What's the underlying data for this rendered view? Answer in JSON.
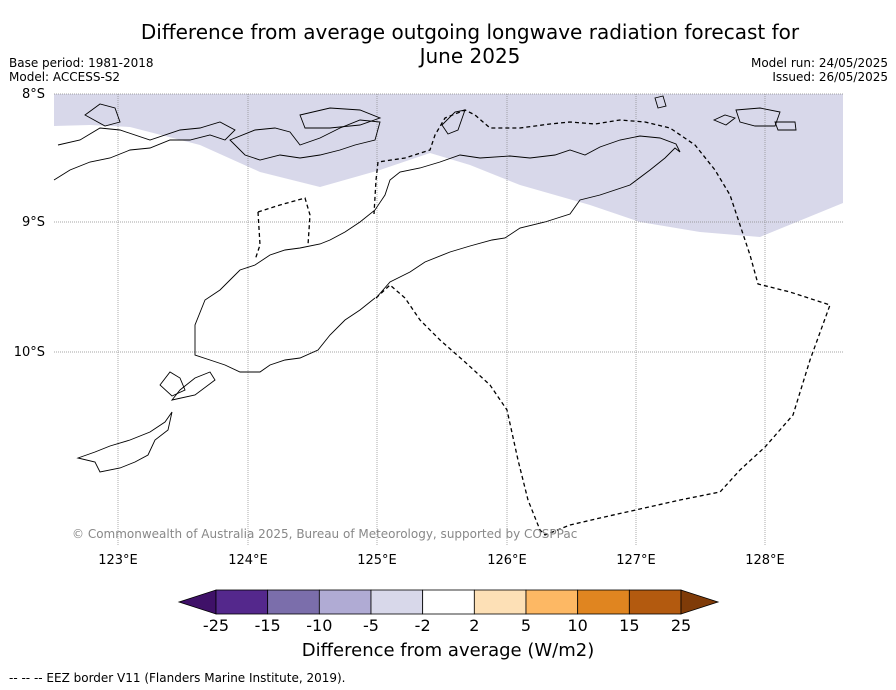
{
  "title": "Difference from average outgoing longwave radiation forecast for June 2025",
  "base_period": "Base period: 1981-2018",
  "model": "Model: ACCESS-S2",
  "model_run": "Model run: 24/05/2025",
  "issued": "Issued: 26/05/2025",
  "lat_labels": [
    "8°S",
    "9°S",
    "10°S"
  ],
  "lon_labels": [
    "123°E",
    "124°E",
    "125°E",
    "126°E",
    "127°E",
    "128°E"
  ],
  "copyright": "© Commonwealth of Australia 2025, Bureau of Meteorology, supported by COSPPac",
  "colorbar": {
    "ticks": [
      "-25",
      "-15",
      "-10",
      "-5",
      "-2",
      "2",
      "5",
      "10",
      "15",
      "25"
    ],
    "colors": [
      "#3f1168",
      "#54288c",
      "#7b6eab",
      "#b0abd4",
      "#d8d8ea",
      "#ffffff",
      "#fde0b6",
      "#fdb864",
      "#e08520",
      "#b35a0f",
      "#7f3b08"
    ],
    "label": "Difference from average (W/m2)"
  },
  "footnote": "--  --  -- EEZ border V11 (Flanders Marine Institute, 2019)."
}
